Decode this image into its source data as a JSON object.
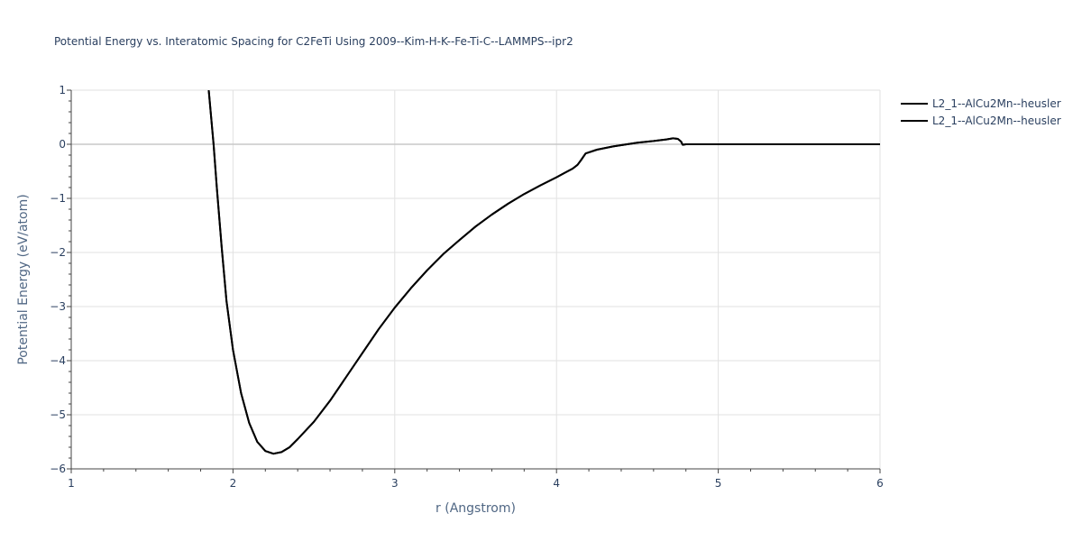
{
  "chart_data": {
    "type": "line",
    "title": "Potential Energy vs. Interatomic Spacing for C2FeTi Using 2009--Kim-H-K--Fe-Ti-C--LAMMPS--ipr2",
    "xlabel": "r (Angstrom)",
    "ylabel": "Potential Energy (eV/atom)",
    "xlim": [
      1,
      6
    ],
    "ylim": [
      -6,
      1
    ],
    "xticks": [
      1,
      2,
      3,
      4,
      5,
      6
    ],
    "yticks": [
      1,
      0,
      -1,
      -2,
      -3,
      -4,
      -5,
      -6
    ],
    "ytick_labels": [
      "1",
      "0",
      "−1",
      "−2",
      "−3",
      "−4",
      "−5",
      "−6"
    ],
    "grid": true,
    "legend_position": "top-right",
    "color": "#000000",
    "series": [
      {
        "name": "L2_1--AlCu2Mn--heusler",
        "x": [
          1.85,
          1.88,
          1.9,
          1.93,
          1.96,
          2.0,
          2.05,
          2.1,
          2.15,
          2.2,
          2.25,
          2.3,
          2.35,
          2.4,
          2.5,
          2.6,
          2.7,
          2.8,
          2.9,
          3.0,
          3.1,
          3.2,
          3.3,
          3.4,
          3.5,
          3.6,
          3.7,
          3.8,
          3.9,
          4.0,
          4.05,
          4.1,
          4.13,
          4.15,
          4.18,
          4.25,
          4.35,
          4.5,
          4.6,
          4.68,
          4.72,
          4.75,
          4.77,
          4.78,
          4.8,
          4.9,
          5.0,
          5.5,
          6.0
        ],
        "y": [
          1.0,
          0.0,
          -0.8,
          -1.9,
          -2.9,
          -3.8,
          -4.6,
          -5.15,
          -5.5,
          -5.67,
          -5.72,
          -5.69,
          -5.6,
          -5.45,
          -5.13,
          -4.74,
          -4.3,
          -3.86,
          -3.42,
          -3.02,
          -2.66,
          -2.33,
          -2.03,
          -1.77,
          -1.52,
          -1.3,
          -1.1,
          -0.92,
          -0.76,
          -0.61,
          -0.53,
          -0.45,
          -0.38,
          -0.3,
          -0.17,
          -0.1,
          -0.04,
          0.03,
          0.06,
          0.09,
          0.11,
          0.1,
          0.05,
          -0.01,
          0.0,
          0.0,
          0.0,
          0.0,
          0.0
        ]
      },
      {
        "name": "L2_1--AlCu2Mn--heusler",
        "x": [
          1.85,
          1.88,
          1.9,
          1.93,
          1.96,
          2.0,
          2.05,
          2.1,
          2.15,
          2.2,
          2.25,
          2.3,
          2.35,
          2.4,
          2.5,
          2.6,
          2.7,
          2.8,
          2.9,
          3.0,
          3.1,
          3.2,
          3.3,
          3.4,
          3.5,
          3.6,
          3.7,
          3.8,
          3.9,
          4.0,
          4.05,
          4.1,
          4.13,
          4.15,
          4.18,
          4.25,
          4.35,
          4.5,
          4.6,
          4.68,
          4.72,
          4.75,
          4.77,
          4.78,
          4.8,
          4.9,
          5.0,
          5.5,
          6.0
        ],
        "y": [
          1.0,
          0.0,
          -0.8,
          -1.9,
          -2.9,
          -3.8,
          -4.6,
          -5.15,
          -5.5,
          -5.67,
          -5.72,
          -5.69,
          -5.6,
          -5.45,
          -5.13,
          -4.74,
          -4.3,
          -3.86,
          -3.42,
          -3.02,
          -2.66,
          -2.33,
          -2.03,
          -1.77,
          -1.52,
          -1.3,
          -1.1,
          -0.92,
          -0.76,
          -0.61,
          -0.53,
          -0.45,
          -0.38,
          -0.3,
          -0.17,
          -0.1,
          -0.04,
          0.03,
          0.06,
          0.09,
          0.11,
          0.1,
          0.05,
          -0.01,
          0.0,
          0.0,
          0.0,
          0.0,
          0.0
        ]
      }
    ]
  }
}
